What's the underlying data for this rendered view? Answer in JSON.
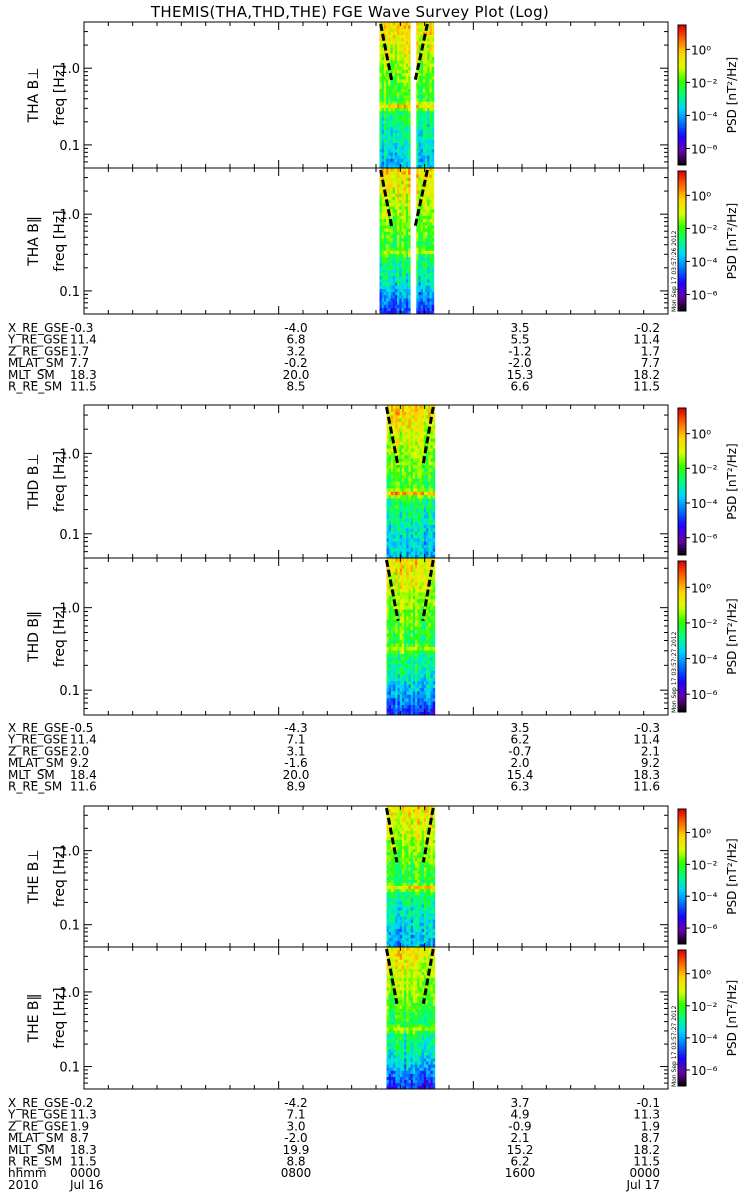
{
  "title": "THEMIS(THA,THD,THE) FGE Wave Survey Plot (Log)",
  "freq_axis_label": "freq [Hz]",
  "freq_ticks": [
    "1.0",
    "0.1"
  ],
  "colorbar": {
    "label": "PSD [nT²/Hz]",
    "ticks": [
      "10⁰",
      "10⁻²",
      "10⁻⁴",
      "10⁻⁶"
    ]
  },
  "probes": [
    {
      "name": "THA",
      "panels": [
        {
          "label": "THA B⊥"
        },
        {
          "label": "THA B‖",
          "stamp": "Mon Sep 17 03:57:26 2012"
        }
      ],
      "ephemeris": [
        {
          "label": "X_RE_GSE",
          "values": [
            "-0.3",
            "-4.0",
            "3.5",
            "-0.2"
          ]
        },
        {
          "label": "Y_RE_GSE",
          "values": [
            "11.4",
            "6.8",
            "5.5",
            "11.4"
          ]
        },
        {
          "label": "Z_RE_GSE",
          "values": [
            "1.7",
            "3.2",
            "-1.2",
            "1.7"
          ]
        },
        {
          "label": "MLAT_SM",
          "values": [
            "7.7",
            "-0.2",
            "-2.0",
            "7.7"
          ]
        },
        {
          "label": "MLT_SM",
          "values": [
            "18.3",
            "20.0",
            "15.3",
            "18.2"
          ]
        },
        {
          "label": "R_RE_SM",
          "values": [
            "11.5",
            "8.5",
            "6.6",
            "11.5"
          ]
        }
      ]
    },
    {
      "name": "THD",
      "panels": [
        {
          "label": "THD B⊥"
        },
        {
          "label": "THD B‖",
          "stamp": "Mon Sep 17 03:57:27 2012"
        }
      ],
      "ephemeris": [
        {
          "label": "X_RE_GSE",
          "values": [
            "-0.5",
            "-4.3",
            "3.5",
            "-0.3"
          ]
        },
        {
          "label": "Y_RE_GSE",
          "values": [
            "11.4",
            "7.1",
            "6.2",
            "11.4"
          ]
        },
        {
          "label": "Z_RE_GSE",
          "values": [
            "2.0",
            "3.1",
            "-0.7",
            "2.1"
          ]
        },
        {
          "label": "MLAT_SM",
          "values": [
            "9.2",
            "-1.6",
            "2.0",
            "9.2"
          ]
        },
        {
          "label": "MLT_SM",
          "values": [
            "18.4",
            "20.0",
            "15.4",
            "18.3"
          ]
        },
        {
          "label": "R_RE_SM",
          "values": [
            "11.6",
            "8.9",
            "6.3",
            "11.6"
          ]
        }
      ]
    },
    {
      "name": "THE",
      "panels": [
        {
          "label": "THE B⊥"
        },
        {
          "label": "THE B‖",
          "stamp": "Mon Sep 17 03:57:27 2012"
        }
      ],
      "ephemeris": [
        {
          "label": "X_RE_GSE",
          "values": [
            "-0.2",
            "-4.2",
            "3.7",
            "-0.1"
          ]
        },
        {
          "label": "Y_RE_GSE",
          "values": [
            "11.3",
            "7.1",
            "4.9",
            "11.3"
          ]
        },
        {
          "label": "Z_RE_GSE",
          "values": [
            "1.9",
            "3.0",
            "-0.9",
            "1.9"
          ]
        },
        {
          "label": "MLAT_SM",
          "values": [
            "8.7",
            "-2.0",
            "2.1",
            "8.7"
          ]
        },
        {
          "label": "MLT_SM",
          "values": [
            "18.3",
            "19.9",
            "15.2",
            "18.2"
          ]
        },
        {
          "label": "R_RE_SM",
          "values": [
            "11.5",
            "8.8",
            "6.2",
            "11.5"
          ]
        }
      ],
      "time_axis": [
        {
          "label": "hhmm",
          "values": [
            "0000",
            "0800",
            "1600",
            "0000"
          ]
        },
        {
          "label": "2010",
          "values": [
            "Jul 16",
            "",
            "",
            "Jul 17"
          ]
        }
      ]
    }
  ],
  "chart_data": {
    "type": "heatmap",
    "title": "THEMIS(THA,THD,THE) FGE Wave Survey Plot (Log)",
    "x_ticks": [
      "0000",
      "0800",
      "1600",
      "0000"
    ],
    "x_dates": [
      "Jul 16",
      "Jul 17"
    ],
    "x_year": "2010",
    "y_scale": "log",
    "y_ticks": [
      1.0,
      0.1
    ],
    "y_range_hz": [
      0.05,
      4.0
    ],
    "colorbar_scale": "log",
    "colorbar_range": [
      1e-07,
      30
    ],
    "colorbar_ticks": [
      "10⁰",
      "10⁻²",
      "10⁻⁴",
      "10⁻⁶"
    ],
    "colormap": [
      "#000000",
      "#6a00a8",
      "#1f00ff",
      "#0070ff",
      "#00d4ff",
      "#00ff80",
      "#33ff00",
      "#d8ff00",
      "#ffd400",
      "#ff6600",
      "#dd0000"
    ],
    "panels": [
      "THA B⊥",
      "THA B‖",
      "THD B⊥",
      "THD B‖",
      "THE B⊥",
      "THE B‖"
    ]
  }
}
